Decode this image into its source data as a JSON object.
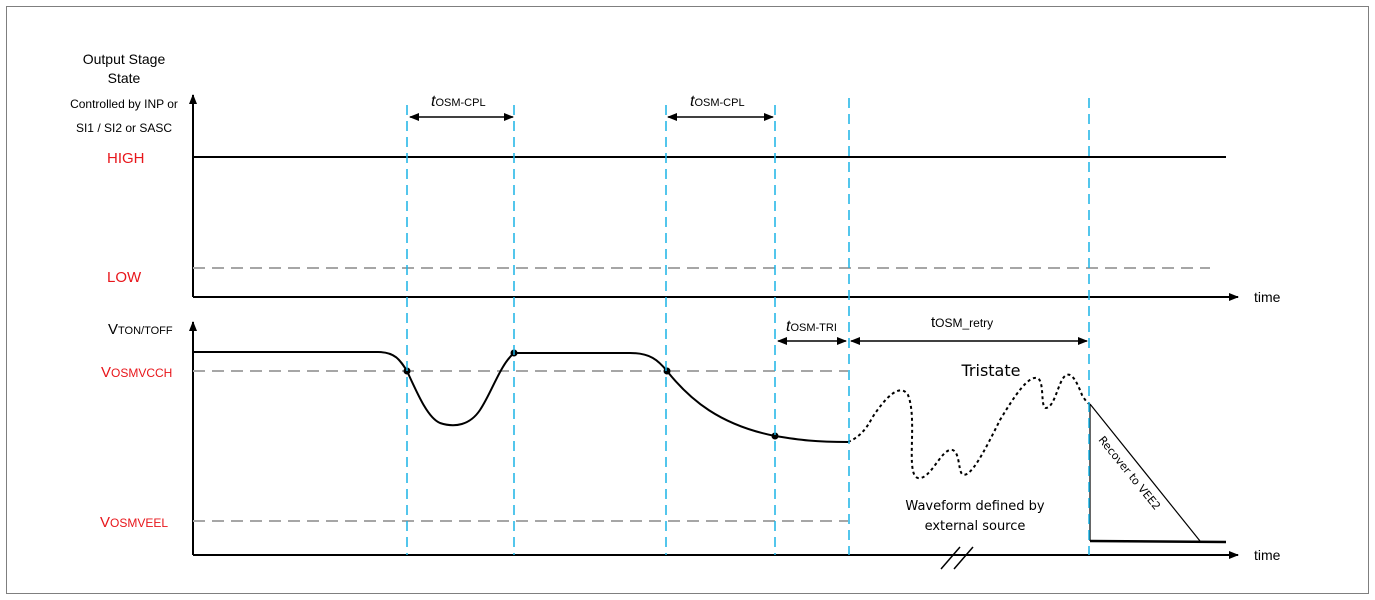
{
  "colors": {
    "accent_red": "#e8161b",
    "marker_blue": "#1ab4e6",
    "threshold_gray": "#a6a6a6",
    "ink": "#000000"
  },
  "top_chart": {
    "y_title_line1": "Output Stage",
    "y_title_line2": "State",
    "y_note_line1": "Controlled by INP or",
    "y_note_line2": "SI1 / SI2 or SASC",
    "level_high": "HIGH",
    "level_low": "LOW",
    "x_axis_label": "time"
  },
  "bottom_chart": {
    "y_axis_main": "V",
    "y_axis_sub": "TON/TOFF",
    "threshold_high_main": "V",
    "threshold_high_sub": "OSMVCCH",
    "threshold_low_main": "V",
    "threshold_low_sub": "OSMVEEL",
    "x_axis_label": "time",
    "tristate_label": "Tristate",
    "external_source_line1": "Waveform defined by",
    "external_source_line2": "external source",
    "recover_label": "Recover to VEE2"
  },
  "timing": {
    "cpl_main": "t",
    "cpl_sub": "OSM-CPL",
    "tri_main": "t",
    "tri_sub": "OSM-TRI",
    "retry_main": "t",
    "retry_sub": "OSM_retry"
  }
}
